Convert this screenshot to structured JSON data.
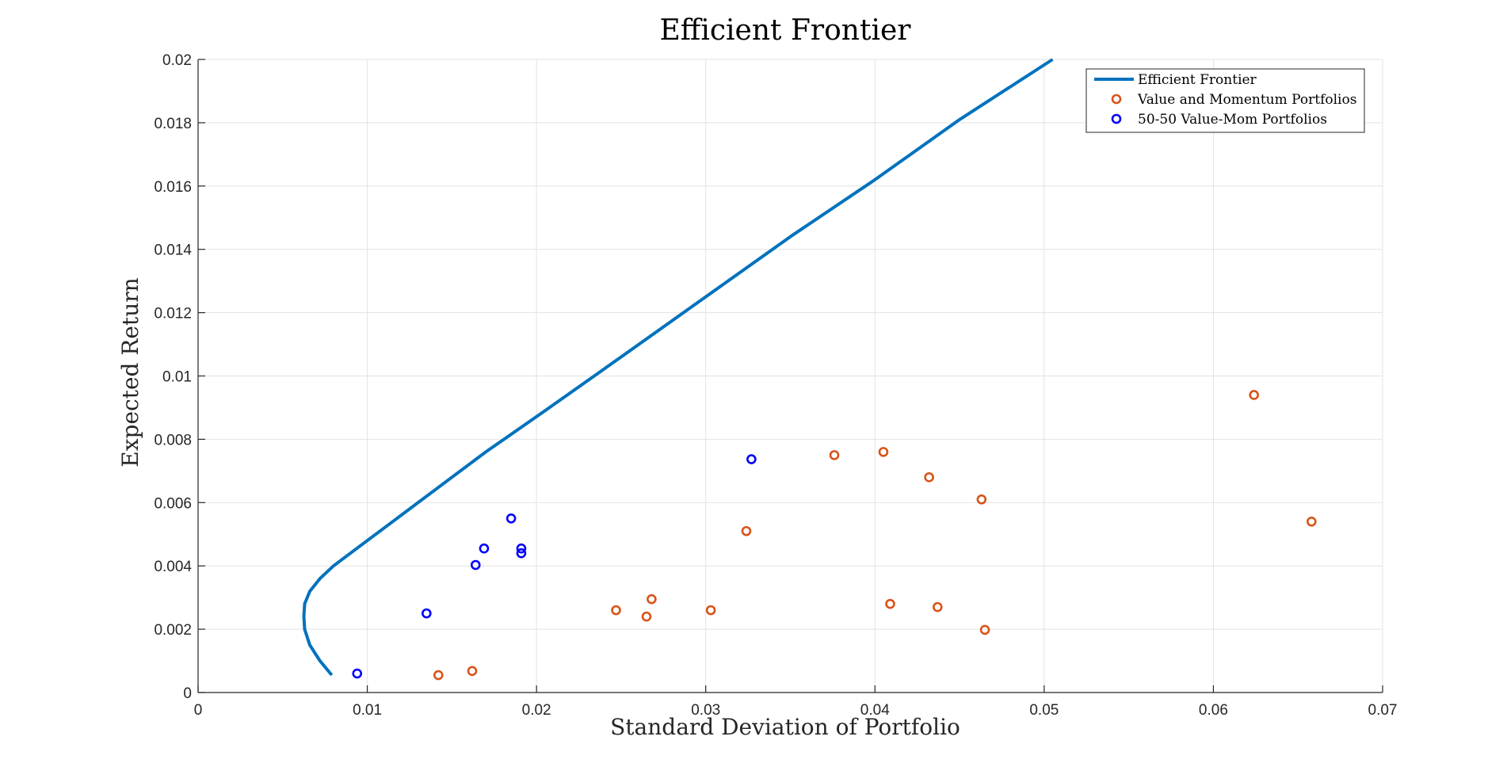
{
  "colors": {
    "frontier": "#0072BD",
    "value_momentum": "#D95319",
    "fifty_fifty": "#0000FF",
    "grid": "#e3e3e3",
    "axis": "#262626"
  },
  "chart_data": {
    "type": "scatter",
    "title": "Efficient Frontier",
    "xlabel": "Standard Deviation of Portfolio",
    "ylabel": "Expected Return",
    "xlim": [
      0,
      0.07
    ],
    "ylim": [
      0,
      0.02
    ],
    "xticks": [
      "0",
      "0.01",
      "0.02",
      "0.03",
      "0.04",
      "0.05",
      "0.06",
      "0.07"
    ],
    "yticks": [
      "0",
      "0.002",
      "0.004",
      "0.006",
      "0.008",
      "0.01",
      "0.012",
      "0.014",
      "0.016",
      "0.018",
      "0.02"
    ],
    "grid": true,
    "legend_position": "top-right",
    "series": [
      {
        "name": "Efficient Frontier",
        "kind": "line",
        "x": [
          0.0079,
          0.0072,
          0.0066,
          0.0063,
          0.00625,
          0.0063,
          0.0066,
          0.0072,
          0.008,
          0.0095,
          0.0115,
          0.014,
          0.017,
          0.0205,
          0.025,
          0.03,
          0.035,
          0.04,
          0.045,
          0.0505
        ],
        "y": [
          0.00055,
          0.001,
          0.0015,
          0.002,
          0.0024,
          0.0028,
          0.0032,
          0.0036,
          0.004,
          0.0046,
          0.0054,
          0.0064,
          0.0076,
          0.0089,
          0.0106,
          0.0125,
          0.0144,
          0.0162,
          0.0181,
          0.02
        ]
      },
      {
        "name": "Value and Momentum Portfolios",
        "kind": "scatter",
        "x": [
          0.0142,
          0.0162,
          0.0247,
          0.0265,
          0.0268,
          0.0303,
          0.0324,
          0.0376,
          0.0405,
          0.0409,
          0.0432,
          0.0437,
          0.0463,
          0.0465,
          0.0624,
          0.0658
        ],
        "y": [
          0.00055,
          0.00068,
          0.0026,
          0.0024,
          0.00295,
          0.0026,
          0.0051,
          0.0075,
          0.0076,
          0.0028,
          0.0068,
          0.0027,
          0.0061,
          0.00198,
          0.0094,
          0.0054
        ]
      },
      {
        "name": "50-50 Value-Mom Portfolios",
        "kind": "scatter",
        "x": [
          0.0094,
          0.0135,
          0.0164,
          0.0169,
          0.0185,
          0.0191,
          0.0191,
          0.0327
        ],
        "y": [
          0.0006,
          0.0025,
          0.00403,
          0.00455,
          0.0055,
          0.00455,
          0.0044,
          0.00737
        ]
      }
    ]
  }
}
